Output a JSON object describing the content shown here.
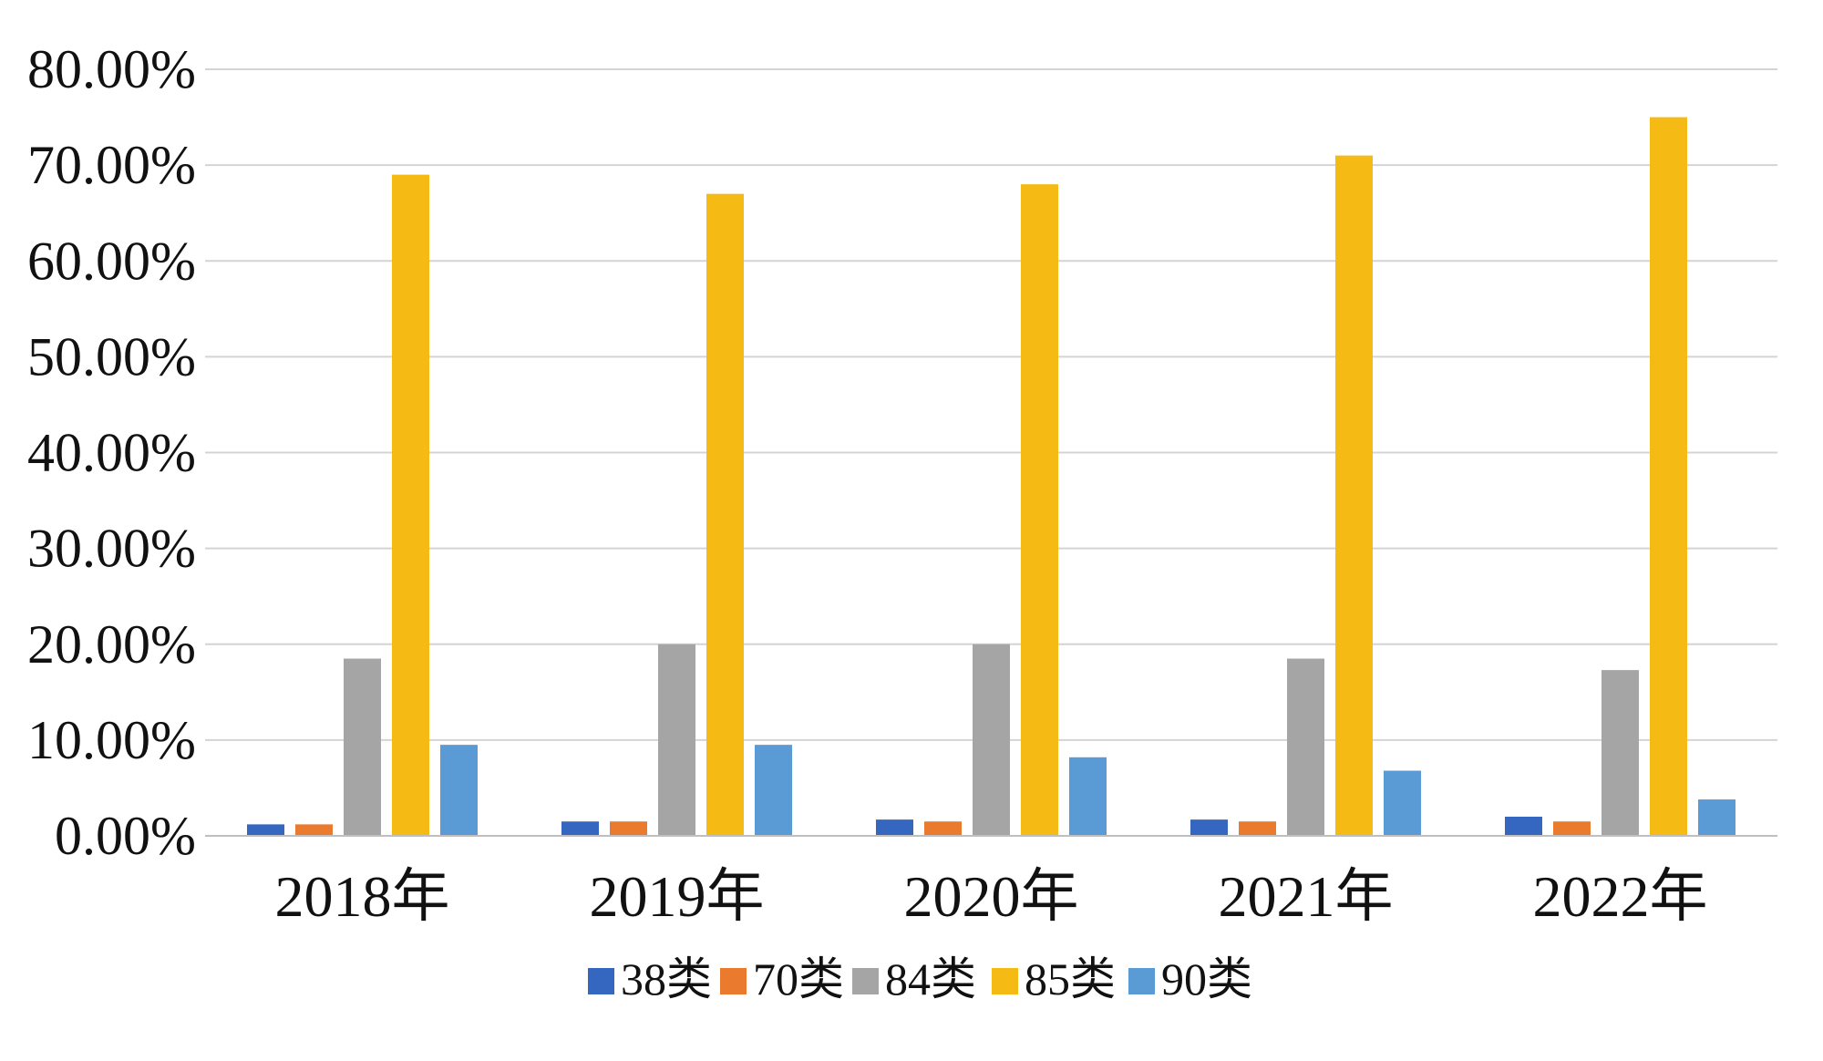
{
  "chart_data": {
    "type": "bar",
    "title": "",
    "xlabel": "",
    "ylabel": "",
    "categories": [
      "2018年",
      "2019年",
      "2020年",
      "2021年",
      "2022年"
    ],
    "series": [
      {
        "name": "38类",
        "color": "#3567C0",
        "values": [
          1.2,
          1.5,
          1.7,
          1.7,
          2.0
        ]
      },
      {
        "name": "70类",
        "color": "#E97A2E",
        "values": [
          1.2,
          1.5,
          1.5,
          1.5,
          1.5
        ]
      },
      {
        "name": "84类",
        "color": "#A5A5A5",
        "values": [
          18.5,
          20.0,
          20.0,
          18.5,
          17.3
        ]
      },
      {
        "name": "85类",
        "color": "#F5BA14",
        "values": [
          69.0,
          67.0,
          68.0,
          71.0,
          75.0
        ]
      },
      {
        "name": "90类",
        "color": "#5B9BD5",
        "values": [
          9.5,
          9.5,
          8.2,
          6.8,
          3.8
        ]
      }
    ],
    "ylim": [
      0,
      80
    ],
    "yticks": [
      0,
      10,
      20,
      30,
      40,
      50,
      60,
      70,
      80
    ],
    "ytick_labels": [
      "0.00%",
      "10.00%",
      "20.00%",
      "30.00%",
      "40.00%",
      "50.00%",
      "60.00%",
      "70.00%",
      "80.00%"
    ],
    "grid": true,
    "legend_position": "bottom"
  }
}
